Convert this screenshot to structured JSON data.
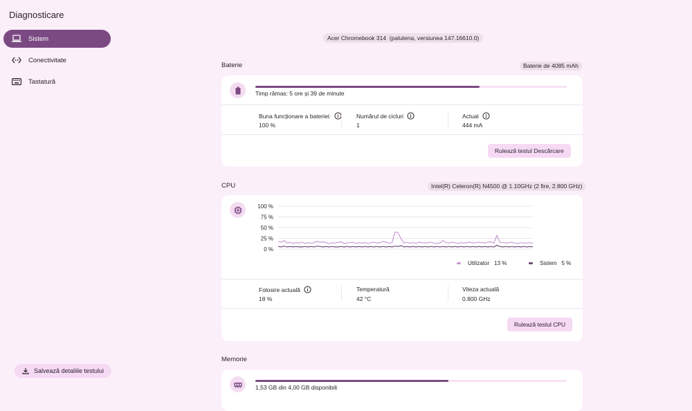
{
  "app": {
    "title": "Diagnosticare"
  },
  "sidebar": {
    "items": [
      {
        "label": "Sistem",
        "icon": "laptop-icon",
        "active": true
      },
      {
        "label": "Conectivitate",
        "icon": "connectivity-icon",
        "active": false
      },
      {
        "label": "Tastatură",
        "icon": "keyboard-icon",
        "active": false
      }
    ],
    "save_label": "Salvează detaliile testului"
  },
  "device": {
    "name": "Acer Chromebook 314",
    "detail": "(palutena, versiunea 147.16610.0)"
  },
  "battery": {
    "title": "Baterie",
    "capacity_chip": "Baterie de 4085 mAh",
    "level_fraction": 0.72,
    "time_remaining": "Timp rămas: 5 ore și 39 de minute",
    "health_label": "Buna funcționare a bateriei:",
    "health_value": "100 %",
    "cycles_label": "Numărul de cicluri",
    "cycles_value": "1",
    "current_label": "Actual",
    "current_value": "444 mA",
    "run_button": "Rulează testul Descărcare"
  },
  "cpu": {
    "title": "CPU",
    "model_chip": "Intel(R) Celeron(R) N4500 @ 1.10GHz (2 fire, 2.800 GHz)",
    "usage_label": "Folosire actuală",
    "usage_value": "18 %",
    "temp_label": "Temperatură",
    "temp_value": "42 °C",
    "speed_label": "Viteza actuală",
    "speed_value": "0.800 GHz",
    "run_button": "Rulează testul CPU",
    "legend_user_label": "Utilizator",
    "legend_user_value": "13 %",
    "legend_system_label": "Sistem",
    "legend_system_value": "5 %",
    "colors": {
      "user": "#c79ad0",
      "system": "#6e4a76"
    }
  },
  "chart_data": {
    "type": "line",
    "y_ticks": [
      "100 %",
      "75 %",
      "50 %",
      "25 %",
      "0 %"
    ],
    "ylim": [
      0,
      100
    ],
    "series": [
      {
        "name": "Utilizator",
        "values": [
          18,
          16,
          20,
          14,
          16,
          13,
          15,
          14,
          16,
          13,
          15,
          14,
          15,
          18,
          16,
          17,
          15,
          13,
          15,
          14,
          16,
          17,
          13,
          14,
          15,
          16,
          13,
          15,
          14,
          15,
          13,
          15,
          16,
          14,
          15,
          18,
          16,
          14,
          15,
          40,
          38,
          24,
          14,
          16,
          14,
          15,
          13,
          16,
          15,
          14,
          15,
          16,
          14,
          13,
          14,
          20,
          15,
          14,
          16,
          15,
          13,
          15,
          14,
          15,
          16,
          14,
          15,
          16,
          15,
          14,
          16,
          17,
          14,
          32,
          16,
          15,
          14,
          15,
          16,
          14,
          13,
          15,
          14,
          14,
          15,
          13
        ]
      },
      {
        "name": "Sistem",
        "values": [
          6,
          5,
          7,
          5,
          6,
          5,
          6,
          5,
          5,
          6,
          5,
          6,
          5,
          7,
          6,
          5,
          6,
          5,
          6,
          5,
          5,
          6,
          5,
          6,
          5,
          6,
          5,
          6,
          5,
          6,
          5,
          6,
          5,
          6,
          5,
          6,
          5,
          6,
          5,
          7,
          6,
          8,
          5,
          6,
          5,
          6,
          5,
          6,
          5,
          6,
          5,
          6,
          5,
          6,
          5,
          6,
          5,
          6,
          5,
          6,
          5,
          6,
          5,
          6,
          5,
          6,
          5,
          6,
          5,
          6,
          5,
          6,
          5,
          9,
          6,
          5,
          6,
          5,
          6,
          5,
          6,
          5,
          6,
          5,
          6,
          5
        ]
      }
    ]
  },
  "memory": {
    "title": "Memorie",
    "usage_text": "1,53 GB din 4,00 GB disponibili",
    "available_fraction": 0.62
  }
}
